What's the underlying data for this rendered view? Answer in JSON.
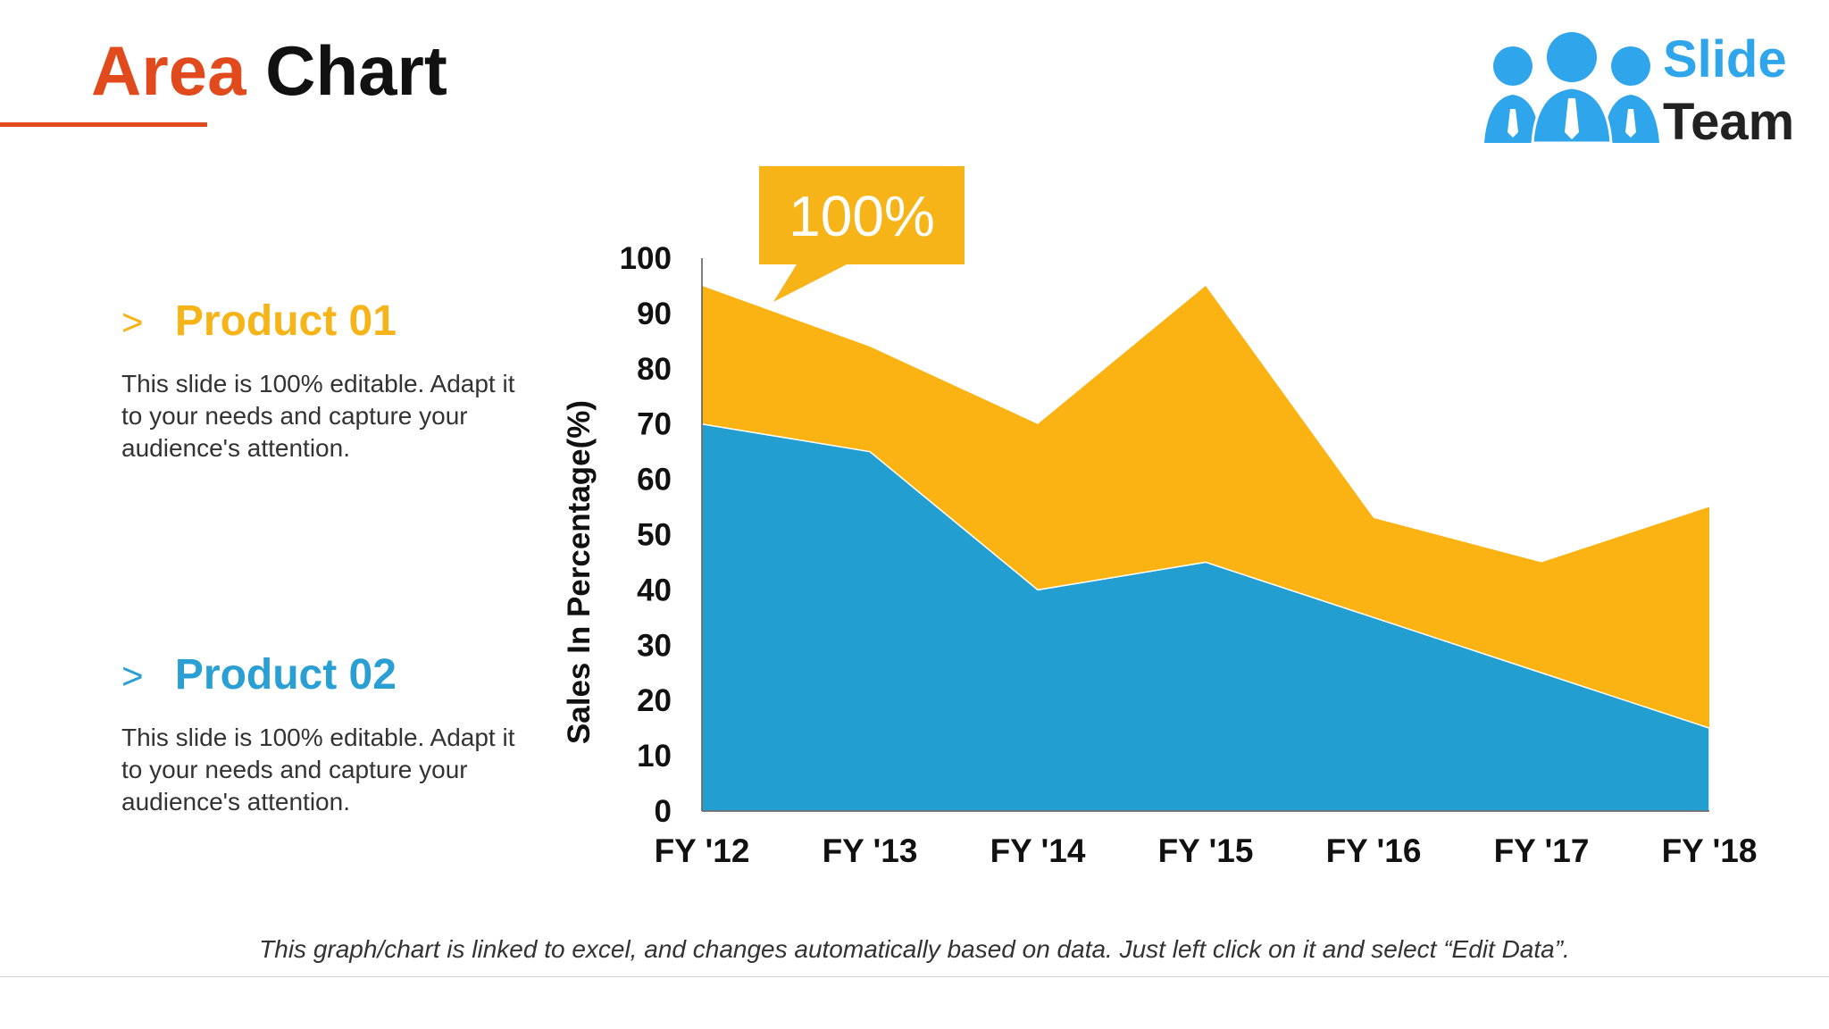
{
  "title": {
    "word1": "Area",
    "word2": "Chart"
  },
  "logo": {
    "line1": "Slide",
    "line2": "Team"
  },
  "products": [
    {
      "arrow": ">",
      "name": "Product 01",
      "description": "This slide is 100% editable. Adapt it to your needs and capture your audience's attention.",
      "color": "#F7B418"
    },
    {
      "arrow": ">",
      "name": "Product 02",
      "description": "This slide is 100% editable. Adapt it to your needs and capture your audience's attention.",
      "color": "#2A9FD4"
    }
  ],
  "callout": {
    "text": "100%",
    "color": "#F7B418"
  },
  "chart_data": {
    "type": "area",
    "categories": [
      "FY '12",
      "FY '13",
      "FY '14",
      "FY '15",
      "FY '16",
      "FY '17",
      "FY '18"
    ],
    "series": [
      {
        "values": [
          95,
          84,
          70,
          95,
          53,
          45,
          55
        ],
        "color": "#FBB314"
      },
      {
        "values": [
          70,
          65,
          40,
          45,
          35,
          25,
          15
        ],
        "color": "#229ED1"
      }
    ],
    "ylabel": "Sales In Percentage(%)",
    "ylim": [
      0,
      100
    ],
    "yticks": [
      0,
      10,
      20,
      30,
      40,
      50,
      60,
      70,
      80,
      90,
      100
    ],
    "grid": false,
    "legend": "none"
  },
  "footer_note": "This graph/chart is linked to excel, and changes automatically based on data. Just left click on it and select “Edit Data”."
}
